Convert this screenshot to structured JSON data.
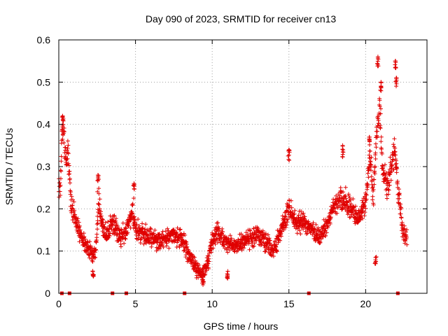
{
  "chart_data": {
    "type": "scatter",
    "title": "Day 090 of 2023, SRMTID for receiver cn13",
    "xlabel": "GPS time / hours",
    "ylabel": "SRMTID / TECUs",
    "xlim": [
      0,
      24
    ],
    "ylim": [
      0,
      0.6
    ],
    "grid": true,
    "x_ticks": [
      0,
      5,
      10,
      15,
      20
    ],
    "x_tick_labels": [
      "0",
      "5",
      "10",
      "15",
      "20"
    ],
    "y_ticks": [
      0,
      0.1,
      0.2,
      0.3,
      0.4,
      0.5,
      0.6
    ],
    "y_tick_labels": [
      "0",
      "0.1",
      "0.2",
      "0.3",
      "0.4",
      "0.5",
      "0.6"
    ],
    "marker": "+",
    "color": "#e00000",
    "series": [
      {
        "name": "SRMTID",
        "profile": [
          [
            0.0,
            0.26
          ],
          [
            0.1,
            0.25
          ],
          [
            0.2,
            0.36
          ],
          [
            0.3,
            0.39
          ],
          [
            0.4,
            0.34
          ],
          [
            0.5,
            0.31
          ],
          [
            0.6,
            0.33
          ],
          [
            0.8,
            0.21
          ],
          [
            1.0,
            0.19
          ],
          [
            1.2,
            0.16
          ],
          [
            1.5,
            0.13
          ],
          [
            1.8,
            0.11
          ],
          [
            2.0,
            0.1
          ],
          [
            2.2,
            0.09
          ],
          [
            2.4,
            0.1
          ],
          [
            2.6,
            0.22
          ],
          [
            2.8,
            0.16
          ],
          [
            3.0,
            0.14
          ],
          [
            3.3,
            0.15
          ],
          [
            3.6,
            0.17
          ],
          [
            4.0,
            0.13
          ],
          [
            4.4,
            0.15
          ],
          [
            4.8,
            0.19
          ],
          [
            5.0,
            0.15
          ],
          [
            5.5,
            0.14
          ],
          [
            6.0,
            0.13
          ],
          [
            6.5,
            0.12
          ],
          [
            7.0,
            0.13
          ],
          [
            7.5,
            0.14
          ],
          [
            8.0,
            0.13
          ],
          [
            8.5,
            0.09
          ],
          [
            9.0,
            0.06
          ],
          [
            9.3,
            0.04
          ],
          [
            9.7,
            0.07
          ],
          [
            10.0,
            0.12
          ],
          [
            10.3,
            0.15
          ],
          [
            10.7,
            0.13
          ],
          [
            11.0,
            0.12
          ],
          [
            11.5,
            0.11
          ],
          [
            12.0,
            0.12
          ],
          [
            12.5,
            0.13
          ],
          [
            13.0,
            0.14
          ],
          [
            13.5,
            0.12
          ],
          [
            14.0,
            0.1
          ],
          [
            14.5,
            0.15
          ],
          [
            15.0,
            0.2
          ],
          [
            15.5,
            0.16
          ],
          [
            16.0,
            0.17
          ],
          [
            16.5,
            0.15
          ],
          [
            17.0,
            0.13
          ],
          [
            17.5,
            0.17
          ],
          [
            18.0,
            0.21
          ],
          [
            18.5,
            0.23
          ],
          [
            19.0,
            0.2
          ],
          [
            19.5,
            0.18
          ],
          [
            20.0,
            0.22
          ],
          [
            20.3,
            0.33
          ],
          [
            20.5,
            0.22
          ],
          [
            20.7,
            0.38
          ],
          [
            20.9,
            0.45
          ],
          [
            21.1,
            0.3
          ],
          [
            21.4,
            0.25
          ],
          [
            21.7,
            0.3
          ],
          [
            21.9,
            0.35
          ],
          [
            22.1,
            0.25
          ],
          [
            22.4,
            0.15
          ],
          [
            22.6,
            0.13
          ]
        ],
        "peaks": [
          [
            0.25,
            0.42
          ],
          [
            2.55,
            0.28
          ],
          [
            4.9,
            0.26
          ],
          [
            15.0,
            0.34
          ],
          [
            18.5,
            0.35
          ],
          [
            20.25,
            0.37
          ],
          [
            20.8,
            0.56
          ],
          [
            21.0,
            0.5
          ],
          [
            21.95,
            0.55
          ],
          [
            22.0,
            0.51
          ],
          [
            9.4,
            0.02
          ],
          [
            11.0,
            0.035
          ],
          [
            2.25,
            0.04
          ],
          [
            20.65,
            0.07
          ]
        ],
        "x_range": [
          0,
          22.7
        ]
      }
    ],
    "gap_markers_x": [
      0.2,
      0.7,
      3.5,
      4.4,
      8.2,
      16.3,
      22.1
    ]
  }
}
